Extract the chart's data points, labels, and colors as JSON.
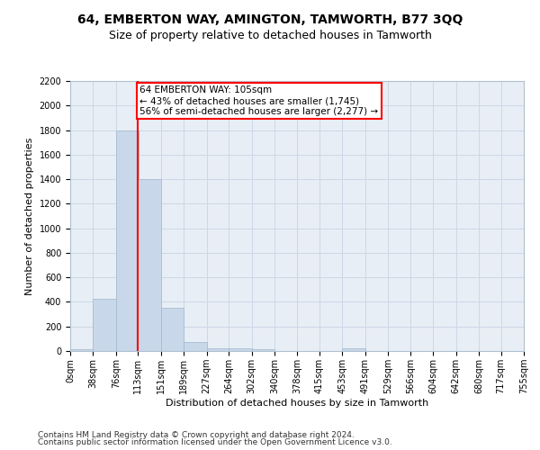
{
  "title": "64, EMBERTON WAY, AMINGTON, TAMWORTH, B77 3QQ",
  "subtitle": "Size of property relative to detached houses in Tamworth",
  "xlabel": "Distribution of detached houses by size in Tamworth",
  "ylabel": "Number of detached properties",
  "bar_color": "#c8d8ea",
  "bar_edge_color": "#a0b8cc",
  "grid_color": "#ccd8e8",
  "background_color": "#e8eef5",
  "bin_edges": [
    0,
    38,
    76,
    113,
    151,
    189,
    227,
    264,
    302,
    340,
    378,
    415,
    453,
    491,
    529,
    566,
    604,
    642,
    680,
    717,
    755
  ],
  "bin_labels": [
    "0sqm",
    "38sqm",
    "76sqm",
    "113sqm",
    "151sqm",
    "189sqm",
    "227sqm",
    "264sqm",
    "302sqm",
    "340sqm",
    "378sqm",
    "415sqm",
    "453sqm",
    "491sqm",
    "529sqm",
    "566sqm",
    "604sqm",
    "642sqm",
    "680sqm",
    "717sqm",
    "755sqm"
  ],
  "bar_heights": [
    15,
    425,
    1800,
    1400,
    350,
    75,
    25,
    20,
    15,
    0,
    0,
    0,
    20,
    0,
    0,
    0,
    0,
    0,
    0,
    0
  ],
  "vline_x": 113,
  "annotation_text": "64 EMBERTON WAY: 105sqm\n← 43% of detached houses are smaller (1,745)\n56% of semi-detached houses are larger (2,277) →",
  "annotation_box_color": "white",
  "annotation_box_edge": "red",
  "vline_color": "red",
  "ylim": [
    0,
    2200
  ],
  "yticks": [
    0,
    200,
    400,
    600,
    800,
    1000,
    1200,
    1400,
    1600,
    1800,
    2000,
    2200
  ],
  "footer_line1": "Contains HM Land Registry data © Crown copyright and database right 2024.",
  "footer_line2": "Contains public sector information licensed under the Open Government Licence v3.0.",
  "title_fontsize": 10,
  "subtitle_fontsize": 9,
  "axis_label_fontsize": 8,
  "tick_fontsize": 7,
  "footer_fontsize": 6.5,
  "annot_fontsize": 7.5
}
